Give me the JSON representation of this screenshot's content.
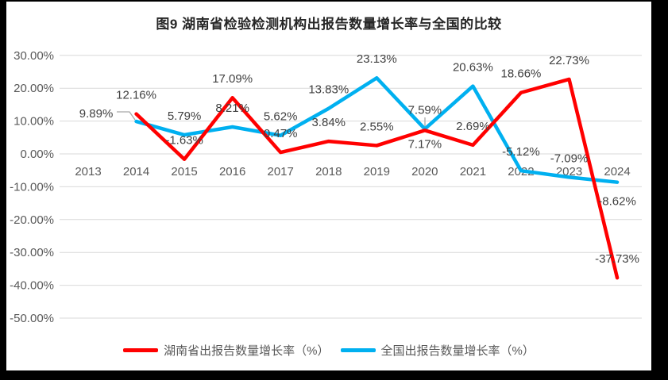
{
  "title": "图9 湖南省检验检测机构出报告数量增长率与全国的比较",
  "chart_data": {
    "type": "line",
    "title": "图9 湖南省检验检测机构出报告数量增长率与全国的比较",
    "categories": [
      "2013",
      "2014",
      "2015",
      "2016",
      "2017",
      "2018",
      "2019",
      "2020",
      "2021",
      "2022",
      "2023",
      "2024"
    ],
    "series": [
      {
        "id": "hunan",
        "name": "湖南省出报告数量增长率（%）",
        "color": "#FF0000",
        "values": [
          null,
          12.16,
          -1.63,
          17.09,
          0.47,
          3.84,
          2.55,
          7.17,
          2.69,
          18.66,
          22.73,
          -37.73
        ]
      },
      {
        "id": "national",
        "name": "全国出报告数量增长率（%）",
        "color": "#00B0F0",
        "values": [
          null,
          9.89,
          5.79,
          8.21,
          5.62,
          13.83,
          23.13,
          7.59,
          20.63,
          -5.12,
          -7.09,
          -8.62
        ]
      }
    ],
    "xlabel": "",
    "ylabel": "",
    "ylim": [
      -50,
      30
    ],
    "y_ticks": [
      {
        "label": "30.00%",
        "value": 30
      },
      {
        "label": "20.00%",
        "value": 20
      },
      {
        "label": "10.00%",
        "value": 10
      },
      {
        "label": "0.00%",
        "value": 0
      },
      {
        "label": "-10.00%",
        "value": -10
      },
      {
        "label": "-20.00%",
        "value": -20
      },
      {
        "label": "-30.00%",
        "value": -30
      },
      {
        "label": "-40.00%",
        "value": -40
      },
      {
        "label": "-50.00%",
        "value": -50
      }
    ],
    "grid": true,
    "data_labels": true,
    "data_label_format": "0.00%",
    "legend_position": "bottom"
  },
  "colors": {
    "gridline": "#D9D9D9",
    "axis_text": "#595959",
    "data_label_text": "#404040",
    "leader_line": "#A6A6A6",
    "chart_background": "#FFFFFF",
    "outer_border": "#000000"
  }
}
